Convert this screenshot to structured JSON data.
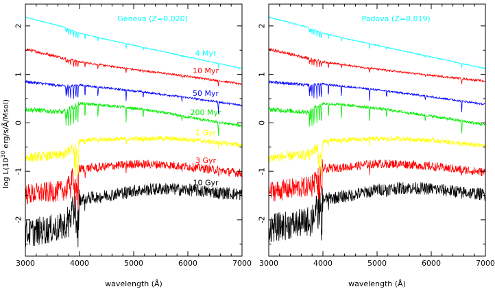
{
  "figure": {
    "ylabel_prefix": "log L(10",
    "ylabel_exp": "30",
    "ylabel_suffix": " erg/s/Å/Msol)"
  },
  "chart_data": [
    {
      "type": "line",
      "title": "Geneva (Z=0.020)",
      "xlabel": "wavelength (Å)",
      "ylabel": "log L(10^30 erg/s/Å/Msol)",
      "xlim": [
        3000,
        7000
      ],
      "ylim": [
        -2.75,
        2.45
      ],
      "xticks": [
        3000,
        4000,
        5000,
        6000,
        7000
      ],
      "yticks": [
        -2,
        -1,
        0,
        1,
        2
      ],
      "grid": false,
      "legend": "inline labels at right",
      "series": [
        {
          "name": "4 Myr",
          "color": "#00ffff",
          "x": [
            3000,
            3700,
            4000,
            4500,
            5000,
            5500,
            6000,
            6500,
            7000
          ],
          "y": [
            2.18,
            1.98,
            1.85,
            1.72,
            1.6,
            1.48,
            1.36,
            1.24,
            1.12
          ]
        },
        {
          "name": "10 Myr",
          "color": "#ff0000",
          "x": [
            3000,
            3700,
            4000,
            4500,
            5000,
            5500,
            6000,
            6500,
            7000
          ],
          "y": [
            1.52,
            1.34,
            1.26,
            1.18,
            1.1,
            1.03,
            0.96,
            0.88,
            0.8
          ]
        },
        {
          "name": "50 Myr",
          "color": "#0000ff",
          "x": [
            3000,
            3700,
            4000,
            4500,
            5000,
            5500,
            6000,
            6500,
            7000
          ],
          "y": [
            0.85,
            0.76,
            0.78,
            0.72,
            0.66,
            0.59,
            0.52,
            0.44,
            0.36
          ]
        },
        {
          "name": "200 Myr",
          "color": "#00ee00",
          "x": [
            3000,
            3700,
            4000,
            4500,
            5000,
            5500,
            6000,
            6500,
            7000
          ],
          "y": [
            0.28,
            0.22,
            0.4,
            0.36,
            0.3,
            0.22,
            0.12,
            0.02,
            -0.06
          ]
        },
        {
          "name": "1 Gyr",
          "color": "#ffff00",
          "x": [
            3000,
            3700,
            4000,
            4500,
            5000,
            5500,
            6000,
            6500,
            7000
          ],
          "y": [
            -0.72,
            -0.66,
            -0.36,
            -0.34,
            -0.33,
            -0.32,
            -0.34,
            -0.4,
            -0.46
          ]
        },
        {
          "name": "3 Gyr",
          "color": "#ff0000",
          "x": [
            3000,
            3700,
            4000,
            4500,
            5000,
            5500,
            6000,
            6500,
            7000
          ],
          "y": [
            -1.48,
            -1.4,
            -0.95,
            -0.9,
            -0.85,
            -0.86,
            -0.9,
            -0.97,
            -1.04
          ]
        },
        {
          "name": "10 Gyr",
          "color": "#000000",
          "x": [
            3000,
            3700,
            4000,
            4500,
            5000,
            5500,
            6000,
            6500,
            7000
          ],
          "y": [
            -2.28,
            -2.15,
            -1.58,
            -1.5,
            -1.4,
            -1.36,
            -1.38,
            -1.43,
            -1.48
          ]
        }
      ]
    },
    {
      "type": "line",
      "title": "Padova (Z=0.019)",
      "xlabel": "wavelength (Å)",
      "ylabel": "",
      "xlim": [
        3000,
        7000
      ],
      "ylim": [
        -2.75,
        2.45
      ],
      "xticks": [
        3000,
        4000,
        5000,
        6000,
        7000
      ],
      "yticks": [
        -2,
        -1,
        0,
        1,
        2
      ],
      "grid": false,
      "legend": "none",
      "series": [
        {
          "color": "#00ffff",
          "x": [
            3000,
            3700,
            4000,
            4500,
            5000,
            5500,
            6000,
            6500,
            7000
          ],
          "y": [
            2.18,
            1.98,
            1.85,
            1.72,
            1.6,
            1.48,
            1.36,
            1.24,
            1.12
          ]
        },
        {
          "color": "#ff0000",
          "x": [
            3000,
            3700,
            4000,
            4500,
            5000,
            5500,
            6000,
            6500,
            7000
          ],
          "y": [
            1.52,
            1.34,
            1.26,
            1.18,
            1.11,
            1.04,
            0.98,
            0.92,
            0.86
          ]
        },
        {
          "color": "#0000ff",
          "x": [
            3000,
            3700,
            4000,
            4500,
            5000,
            5500,
            6000,
            6500,
            7000
          ],
          "y": [
            0.85,
            0.78,
            0.8,
            0.74,
            0.68,
            0.61,
            0.54,
            0.46,
            0.38
          ]
        },
        {
          "color": "#00ee00",
          "x": [
            3000,
            3700,
            4000,
            4500,
            5000,
            5500,
            6000,
            6500,
            7000
          ],
          "y": [
            0.28,
            0.22,
            0.4,
            0.36,
            0.3,
            0.22,
            0.14,
            0.05,
            -0.04
          ]
        },
        {
          "color": "#ffff00",
          "x": [
            3000,
            3700,
            4000,
            4500,
            5000,
            5500,
            6000,
            6500,
            7000
          ],
          "y": [
            -0.72,
            -0.66,
            -0.38,
            -0.35,
            -0.33,
            -0.33,
            -0.36,
            -0.42,
            -0.48
          ]
        },
        {
          "color": "#ff0000",
          "x": [
            3000,
            3700,
            4000,
            4500,
            5000,
            5500,
            6000,
            6500,
            7000
          ],
          "y": [
            -1.42,
            -1.32,
            -0.95,
            -0.9,
            -0.84,
            -0.85,
            -0.9,
            -0.96,
            -1.02
          ]
        },
        {
          "color": "#000000",
          "x": [
            3000,
            3700,
            4000,
            4500,
            5000,
            5500,
            6000,
            6500,
            7000
          ],
          "y": [
            -2.18,
            -2.05,
            -1.58,
            -1.5,
            -1.38,
            -1.34,
            -1.36,
            -1.42,
            -1.48
          ]
        }
      ]
    }
  ]
}
